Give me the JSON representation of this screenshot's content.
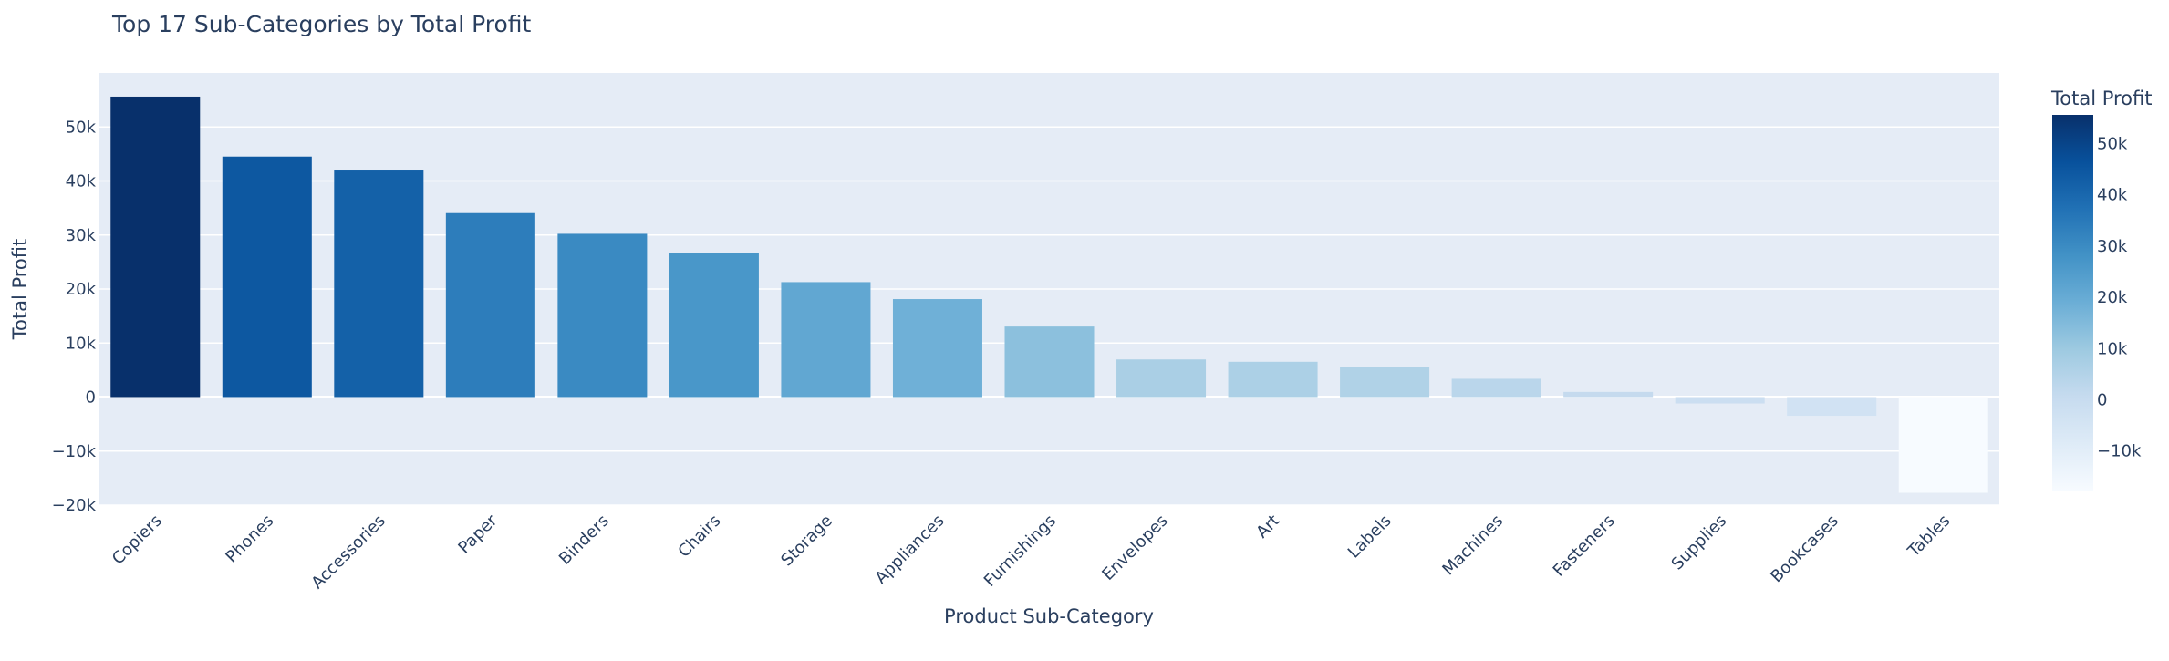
{
  "chart_data": {
    "type": "bar",
    "title": "Top 17 Sub-Categories by Total Profit",
    "xlabel": "Product Sub-Category",
    "ylabel": "Total Profit",
    "categories": [
      "Copiers",
      "Phones",
      "Accessories",
      "Paper",
      "Binders",
      "Chairs",
      "Storage",
      "Appliances",
      "Furnishings",
      "Envelopes",
      "Art",
      "Labels",
      "Machines",
      "Fasteners",
      "Supplies",
      "Bookcases",
      "Tables"
    ],
    "values": [
      55618,
      44516,
      41937,
      34054,
      30222,
      26590,
      21279,
      18138,
      13059,
      6964,
      6528,
      5546,
      3385,
      950,
      -1189,
      -3473,
      -17725
    ],
    "ylim": [
      -20000,
      60000
    ],
    "y_ticks": [
      -20000,
      -10000,
      0,
      10000,
      20000,
      30000,
      40000,
      50000
    ],
    "y_tick_labels": [
      "−20k",
      "−10k",
      "0",
      "10k",
      "20k",
      "30k",
      "40k",
      "50k"
    ],
    "grid": true,
    "colorbar": {
      "title": "Total Profit",
      "range": [
        -17725,
        55618
      ],
      "ticks": [
        -10000,
        0,
        10000,
        20000,
        30000,
        40000,
        50000
      ],
      "tick_labels": [
        "−10k",
        "0",
        "10k",
        "20k",
        "30k",
        "40k",
        "50k"
      ],
      "colorscale": [
        [
          0.0,
          "#f7fbff"
        ],
        [
          0.125,
          "#deebf7"
        ],
        [
          0.25,
          "#c6dbef"
        ],
        [
          0.375,
          "#9ecae1"
        ],
        [
          0.5,
          "#6baed6"
        ],
        [
          0.625,
          "#4292c6"
        ],
        [
          0.75,
          "#2171b5"
        ],
        [
          0.875,
          "#08519c"
        ],
        [
          1.0,
          "#08306b"
        ]
      ]
    }
  },
  "colors": {
    "plot_background": "#e5ecf6",
    "grid": "#ffffff",
    "text": "#2a3f5f"
  }
}
